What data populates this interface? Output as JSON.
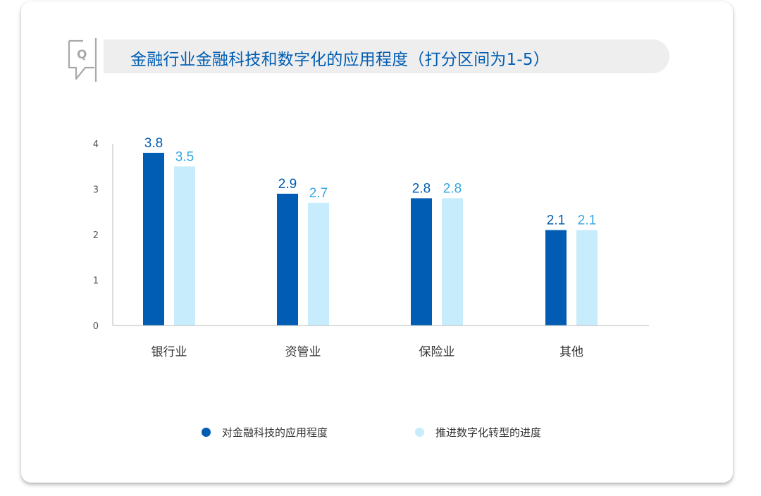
{
  "title": "金融行业金融科技和数字化的应用程度（打分区间为1-5）",
  "icon": "q-speech-bubble-icon",
  "colors": {
    "series1": "#005db3",
    "series2": "#c7ecfb",
    "series2_label": "#37a7e2",
    "axis": "#bbbbbb"
  },
  "chart_data": {
    "type": "bar",
    "categories": [
      "银行业",
      "资管业",
      "保险业",
      "其他"
    ],
    "series": [
      {
        "name": "对金融科技的应用程度",
        "values": [
          3.8,
          2.9,
          2.8,
          2.1
        ]
      },
      {
        "name": "推进数字化转型的进度",
        "values": [
          3.5,
          2.7,
          2.8,
          2.1
        ]
      }
    ],
    "ylim": [
      0,
      4
    ],
    "yticks": [
      "0",
      "1",
      "2",
      "3",
      "4"
    ],
    "data_labels": true,
    "grid": false,
    "legend": "bottom"
  }
}
